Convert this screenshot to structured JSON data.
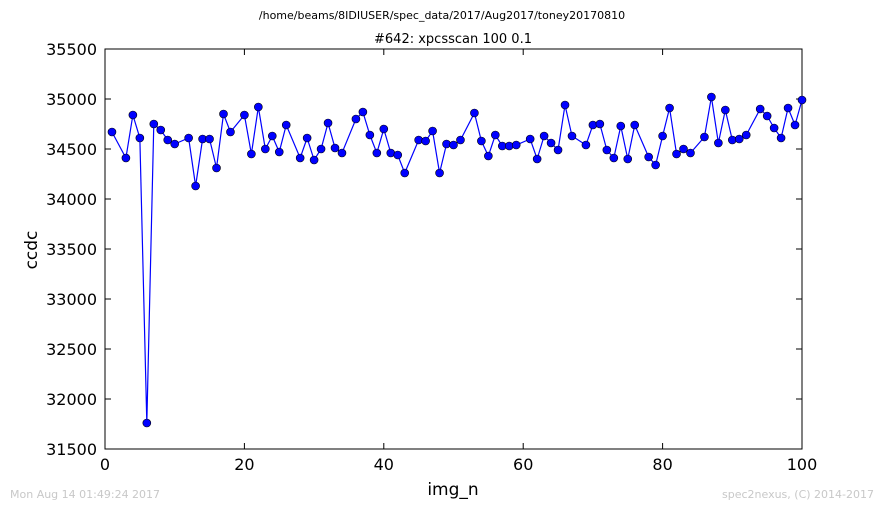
{
  "figure": {
    "suptitle": "/home/beams/8IDIUSER/spec_data/2017/Aug2017/toney20170810",
    "footer_left": "Mon Aug 14 01:49:24 2017",
    "footer_right": "spec2nexus, (C) 2014-2017"
  },
  "chart_data": {
    "type": "line",
    "title": "#642: xpcsscan 100 0.1",
    "xlabel": "img_n",
    "ylabel": "ccdc",
    "xlim": [
      0,
      100
    ],
    "ylim": [
      31500,
      35500
    ],
    "xticks": [
      0,
      20,
      40,
      60,
      80,
      100
    ],
    "yticks": [
      31500,
      32000,
      32500,
      33000,
      33500,
      34000,
      34500,
      35000,
      35500
    ],
    "grid": false,
    "marker": "circle",
    "line_color": "#0000ff",
    "marker_color": "#0000ff",
    "series": [
      {
        "x": [
          1,
          3,
          4,
          5,
          6,
          7,
          8,
          9,
          10,
          12,
          13,
          14,
          15,
          16,
          17,
          18,
          20,
          21,
          22,
          23,
          24,
          25,
          26,
          28,
          29,
          30,
          31,
          32,
          33,
          34,
          36,
          37,
          38,
          39,
          40,
          41,
          42,
          43,
          45,
          46,
          47,
          48,
          49,
          50,
          51,
          53,
          54,
          55,
          56,
          57,
          58,
          59,
          61,
          62,
          63,
          64,
          65,
          66,
          67,
          69,
          70,
          71,
          72,
          73,
          74,
          75,
          76,
          78,
          79,
          80,
          81,
          82,
          83,
          84,
          86,
          87,
          88,
          89,
          90,
          91,
          92,
          94,
          95,
          96,
          97,
          98,
          99,
          100
        ],
        "y": [
          34670,
          34410,
          34840,
          34610,
          31760,
          34750,
          34690,
          34590,
          34550,
          34610,
          34130,
          34600,
          34600,
          34310,
          34850,
          34670,
          34840,
          34450,
          34920,
          34500,
          34630,
          34470,
          34740,
          34410,
          34610,
          34390,
          34500,
          34760,
          34510,
          34460,
          34800,
          34870,
          34640,
          34460,
          34700,
          34460,
          34440,
          34260,
          34590,
          34580,
          34680,
          34260,
          34550,
          34540,
          34590,
          34860,
          34580,
          34430,
          34640,
          34530,
          34530,
          34540,
          34600,
          34400,
          34630,
          34560,
          34490,
          34940,
          34630,
          34540,
          34740,
          34750,
          34490,
          34410,
          34730,
          34400,
          34740,
          34420,
          34340,
          34630,
          34910,
          34450,
          34500,
          34460,
          34620,
          35020,
          34560,
          34890,
          34590,
          34600,
          34640,
          34900,
          34830,
          34710,
          34610,
          34910,
          34740,
          34990
        ]
      }
    ]
  }
}
